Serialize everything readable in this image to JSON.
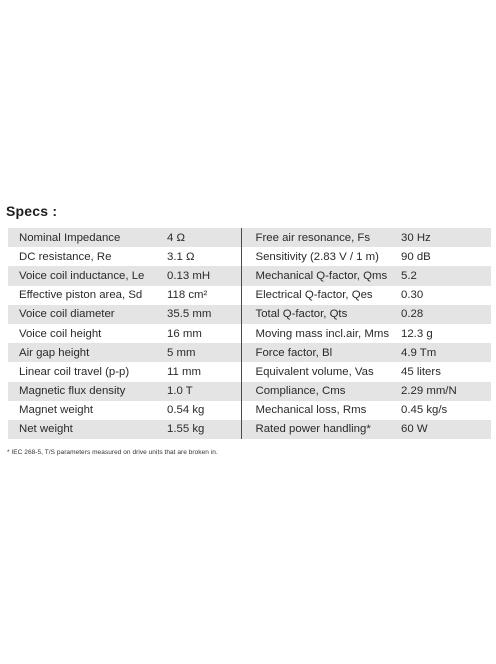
{
  "heading": "Specs :",
  "rows": [
    {
      "l_label": "Nominal Impedance",
      "l_value": "4 Ω",
      "r_label": "Free air resonance, Fs",
      "r_value": "30 Hz"
    },
    {
      "l_label": "DC resistance, Re",
      "l_value": "3.1 Ω",
      "r_label": "Sensitivity (2.83 V / 1 m)",
      "r_value": "90 dB"
    },
    {
      "l_label": "Voice coil inductance, Le",
      "l_value": "0.13 mH",
      "r_label": "Mechanical Q-factor, Qms",
      "r_value": "5.2"
    },
    {
      "l_label": "Effective piston area, Sd",
      "l_value": "118 cm²",
      "r_label": "Electrical Q-factor, Qes",
      "r_value": "0.30"
    },
    {
      "l_label": "Voice coil diameter",
      "l_value": "35.5 mm",
      "r_label": "Total Q-factor, Qts",
      "r_value": "0.28"
    },
    {
      "l_label": "Voice coil height",
      "l_value": "16 mm",
      "r_label": "Moving mass incl.air, Mms",
      "r_value": "12.3 g"
    },
    {
      "l_label": "Air gap height",
      "l_value": "5 mm",
      "r_label": "Force factor, Bl",
      "r_value": "4.9 Tm"
    },
    {
      "l_label": "Linear coil travel (p-p)",
      "l_value": "11 mm",
      "r_label": "Equivalent volume, Vas",
      "r_value": "45 liters"
    },
    {
      "l_label": "Magnetic flux density",
      "l_value": "1.0 T",
      "r_label": "Compliance, Cms",
      "r_value": "2.29 mm/N"
    },
    {
      "l_label": "Magnet weight",
      "l_value": "0.54 kg",
      "r_label": "Mechanical loss, Rms",
      "r_value": "0.45 kg/s"
    },
    {
      "l_label": "Net weight",
      "l_value": "1.55 kg",
      "r_label": "Rated power handling*",
      "r_value": "60 W"
    }
  ],
  "footnote": "* IEC 268-5, T/S parameters measured on drive units that are broken in."
}
